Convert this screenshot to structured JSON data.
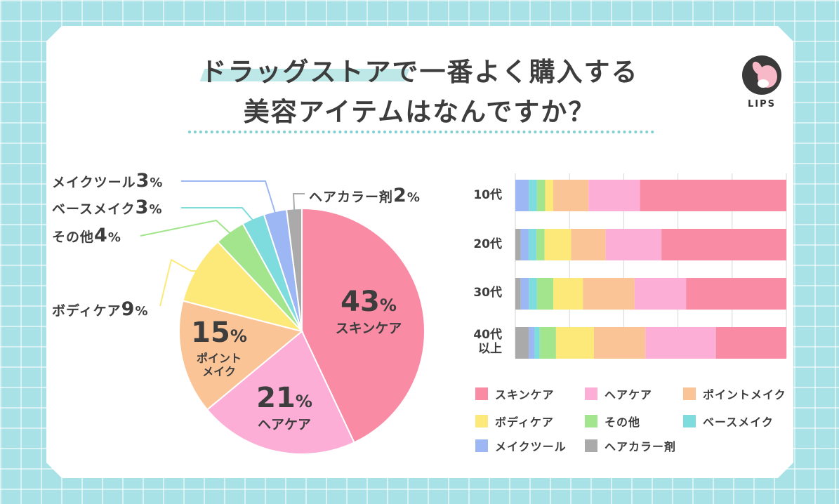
{
  "title": {
    "line1": "ドラッグストアで一番よく購入する",
    "line2": "美容アイテムはなんですか？"
  },
  "logo": {
    "text": "LIPS"
  },
  "colors": {
    "skincare": "#f98ba4",
    "haircare": "#fcaed7",
    "pointmake": "#fbc497",
    "bodycare": "#fde97a",
    "other": "#a2e58c",
    "basemake": "#7fdcde",
    "maketool": "#9db7f4",
    "haircolor": "#aaaaaa"
  },
  "chart_data": [
    {
      "type": "pie",
      "title": "",
      "slices": [
        {
          "key": "skincare",
          "name": "スキンケア",
          "value": 43
        },
        {
          "key": "haircare",
          "name": "ヘアケア",
          "value": 21
        },
        {
          "key": "pointmake",
          "name": "ポイントメイク",
          "value": 15
        },
        {
          "key": "bodycare",
          "name": "ボディケア",
          "value": 9
        },
        {
          "key": "other",
          "name": "その他",
          "value": 4
        },
        {
          "key": "basemake",
          "name": "ベースメイク",
          "value": 3
        },
        {
          "key": "maketool",
          "name": "メイクツール",
          "value": 3
        },
        {
          "key": "haircolor",
          "name": "ヘアカラー剤",
          "value": 2
        }
      ],
      "labels": {
        "skincare": {
          "num": "43",
          "pct": "%",
          "cat": "スキンケア"
        },
        "haircare": {
          "num": "21",
          "pct": "%",
          "cat": "ヘアケア"
        },
        "pointmake": {
          "num": "15",
          "pct": "%",
          "cat1": "ポイント",
          "cat2": "メイク"
        },
        "bodycare": {
          "name": "ボディケア",
          "num": "9",
          "pct": "%"
        },
        "other": {
          "name": "その他",
          "num": "4",
          "pct": "%"
        },
        "basemake": {
          "name": "ベースメイク",
          "num": "3",
          "pct": "%"
        },
        "maketool": {
          "name": "メイクツール",
          "num": "3",
          "pct": "%"
        },
        "haircolor": {
          "name": "ヘアカラー剤",
          "num": "2",
          "pct": "%"
        }
      }
    },
    {
      "type": "bar",
      "orientation": "horizontal",
      "stacked": true,
      "normalized": true,
      "grid": true,
      "categories": [
        "10代",
        "20代",
        "30代",
        "40代以上"
      ],
      "category_lines": [
        [
          "10代"
        ],
        [
          "20代"
        ],
        [
          "30代"
        ],
        [
          "40代",
          "以上"
        ]
      ],
      "series_order": [
        "haircolor",
        "maketool",
        "basemake",
        "other",
        "bodycare",
        "pointmake",
        "haircare",
        "skincare"
      ],
      "series": [
        {
          "key": "haircolor",
          "name": "ヘアカラー剤",
          "values": [
            0,
            2,
            2,
            5
          ]
        },
        {
          "key": "maketool",
          "name": "メイクツール",
          "values": [
            5,
            3,
            3,
            2
          ]
        },
        {
          "key": "basemake",
          "name": "ベースメイク",
          "values": [
            3,
            3,
            3,
            2
          ]
        },
        {
          "key": "other",
          "name": "その他",
          "values": [
            3,
            3,
            6,
            6
          ]
        },
        {
          "key": "bodycare",
          "name": "ボディケア",
          "values": [
            3,
            10,
            11,
            14
          ]
        },
        {
          "key": "pointmake",
          "name": "ポイントメイク",
          "values": [
            13,
            13,
            19,
            19
          ]
        },
        {
          "key": "haircare",
          "name": "ヘアケア",
          "values": [
            19,
            21,
            19,
            26
          ]
        },
        {
          "key": "skincare",
          "name": "スキンケア",
          "values": [
            54,
            47,
            37,
            26
          ]
        }
      ],
      "legend": [
        {
          "key": "skincare",
          "label": "スキンケア"
        },
        {
          "key": "haircare",
          "label": "ヘアケア"
        },
        {
          "key": "pointmake",
          "label": "ポイントメイク"
        },
        {
          "key": "bodycare",
          "label": "ボディケア"
        },
        {
          "key": "other",
          "label": "その他"
        },
        {
          "key": "basemake",
          "label": "ベースメイク"
        },
        {
          "key": "maketool",
          "label": "メイクツール"
        },
        {
          "key": "haircolor",
          "label": "ヘアカラー剤"
        }
      ],
      "legend_position": "bottom"
    }
  ]
}
